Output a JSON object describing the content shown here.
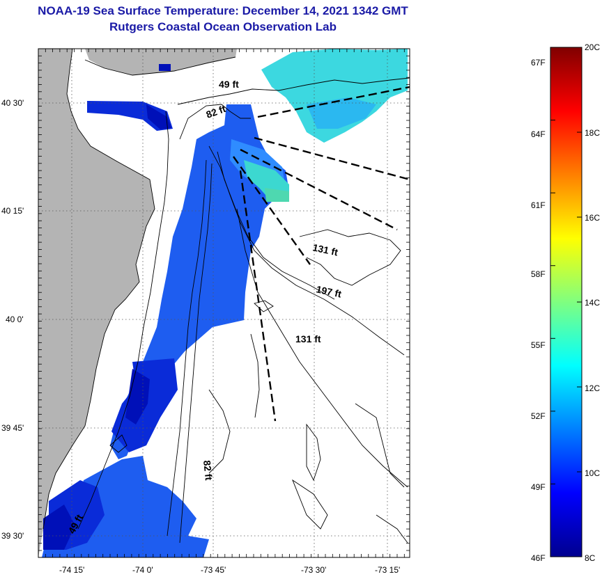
{
  "header": {
    "title": "NOAA-19 Sea Surface Temperature:  December 14, 2021 1342 GMT",
    "subtitle": "Rutgers Coastal Ocean Observation Lab"
  },
  "map": {
    "lon_ticks": [
      "-74 15'",
      "-74 0'",
      "-73 45'",
      "-73 30'",
      "-73 15'"
    ],
    "lat_ticks": [
      "40 30'",
      "40 15'",
      "40 0'",
      "39 45'",
      "39 30'"
    ],
    "depth_labels": [
      "49 ft",
      "82 ft",
      "131 ft",
      "197 ft",
      "131 ft",
      "82 ft",
      "49 ft"
    ],
    "colors": {
      "land": "#b4b4b4",
      "water": "#ffffff",
      "contour": "#000000"
    }
  },
  "colorbar": {
    "f_labels": [
      "67F",
      "64F",
      "61F",
      "58F",
      "55F",
      "52F",
      "49F",
      "46F"
    ],
    "c_labels": [
      "20C",
      "18C",
      "16C",
      "14C",
      "12C",
      "10C",
      "8C"
    ],
    "range_c": [
      8,
      20
    ],
    "range_f": [
      46,
      67
    ],
    "colormap": "jet"
  }
}
